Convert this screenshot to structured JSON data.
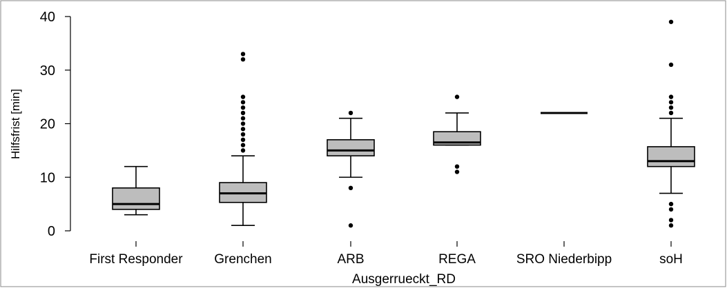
{
  "chart_data": {
    "type": "boxplot",
    "xlabel": "Ausgerrueckt_RD",
    "ylabel": "Hilfsfrist [min]",
    "ylim": [
      0,
      40
    ],
    "yticks": [
      0,
      10,
      20,
      30,
      40
    ],
    "grid": false,
    "legend": "none",
    "colors": {
      "box_fill": "#bdbdbd",
      "stroke": "#000000",
      "frame": "#888888"
    },
    "categories": [
      "First Responder",
      "Grenchen",
      "ARB",
      "REGA",
      "SRO Niederbipp",
      "soH"
    ],
    "boxes": [
      {
        "category": "First Responder",
        "whisker_low": 3,
        "q1": 4,
        "median": 5,
        "q3": 8,
        "whisker_high": 12,
        "outliers": []
      },
      {
        "category": "Grenchen",
        "whisker_low": 1,
        "q1": 5.3,
        "median": 7,
        "q3": 9,
        "whisker_high": 14,
        "outliers": [
          15,
          16,
          17,
          18,
          19,
          20,
          21,
          22,
          23,
          24,
          25,
          32,
          33
        ]
      },
      {
        "category": "ARB",
        "whisker_low": 10,
        "q1": 14,
        "median": 15,
        "q3": 17,
        "whisker_high": 21,
        "outliers": [
          1,
          8,
          22
        ]
      },
      {
        "category": "REGA",
        "whisker_low": 16,
        "q1": 16,
        "median": 16.5,
        "q3": 18.5,
        "whisker_high": 22,
        "outliers": [
          11,
          12,
          25
        ]
      },
      {
        "category": "SRO Niederbipp",
        "whisker_low": 22,
        "q1": 22,
        "median": 22,
        "q3": 22,
        "whisker_high": 22,
        "outliers": []
      },
      {
        "category": "soH",
        "whisker_low": 7,
        "q1": 12,
        "median": 13,
        "q3": 15.7,
        "whisker_high": 21,
        "outliers": [
          1,
          2,
          4,
          5,
          22,
          23,
          24,
          25,
          31,
          39
        ]
      }
    ]
  }
}
